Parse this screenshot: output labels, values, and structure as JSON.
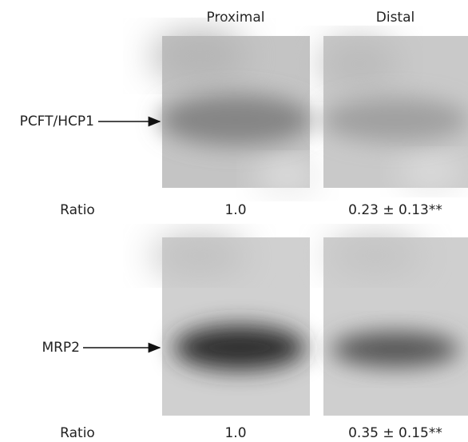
{
  "columns": [
    "Proximal",
    "Distal"
  ],
  "panels": [
    {
      "label": "PCFT/HCP1",
      "ratio_label": "Ratio",
      "ratios": [
        "1.0",
        "0.23 ± 0.13**"
      ]
    },
    {
      "label": "MRP2",
      "ratio_label": "Ratio",
      "ratios": [
        "1.0",
        "0.35 ± 0.15**"
      ]
    }
  ]
}
